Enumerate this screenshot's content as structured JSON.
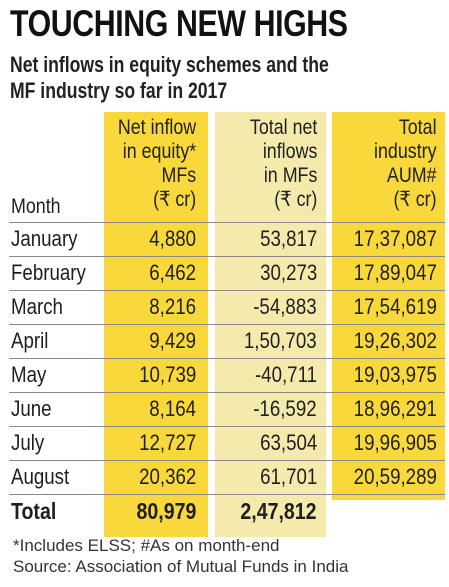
{
  "title": "TOUCHING NEW HIGHS",
  "subtitle_line1": "Net inflows in equity schemes and the",
  "subtitle_line2": "MF industry so far in 2017",
  "headers": {
    "month": "Month",
    "net_inflow": [
      "Net inflow",
      "in equity*",
      "MFs",
      "(₹ cr)"
    ],
    "total_net": [
      "Total net",
      "inflows",
      "in MFs",
      "(₹ cr)"
    ],
    "aum": [
      "Total",
      "industry",
      "AUM#",
      "(₹ cr)"
    ]
  },
  "rows": [
    {
      "month": "January",
      "net_inflow": "4,880",
      "total_net": "53,817",
      "aum": "17,37,087"
    },
    {
      "month": "February",
      "net_inflow": "6,462",
      "total_net": "30,273",
      "aum": "17,89,047"
    },
    {
      "month": "March",
      "net_inflow": "8,216",
      "total_net": "-54,883",
      "aum": "17,54,619"
    },
    {
      "month": "April",
      "net_inflow": "9,429",
      "total_net": "1,50,703",
      "aum": "19,26,302"
    },
    {
      "month": "May",
      "net_inflow": "10,739",
      "total_net": "-40,711",
      "aum": "19,03,975"
    },
    {
      "month": "June",
      "net_inflow": "8,164",
      "total_net": "-16,592",
      "aum": "18,96,291"
    },
    {
      "month": "July",
      "net_inflow": "12,727",
      "total_net": "63,504",
      "aum": "19,96,905"
    },
    {
      "month": "August",
      "net_inflow": "20,362",
      "total_net": "61,701",
      "aum": "20,59,289"
    }
  ],
  "total": {
    "label": "Total",
    "net_inflow": "80,979",
    "total_net": "2,47,812"
  },
  "footnote1": "*Includes ELSS; #As on month-end",
  "footnote2": "Source: Association of Mutual Funds in India"
}
